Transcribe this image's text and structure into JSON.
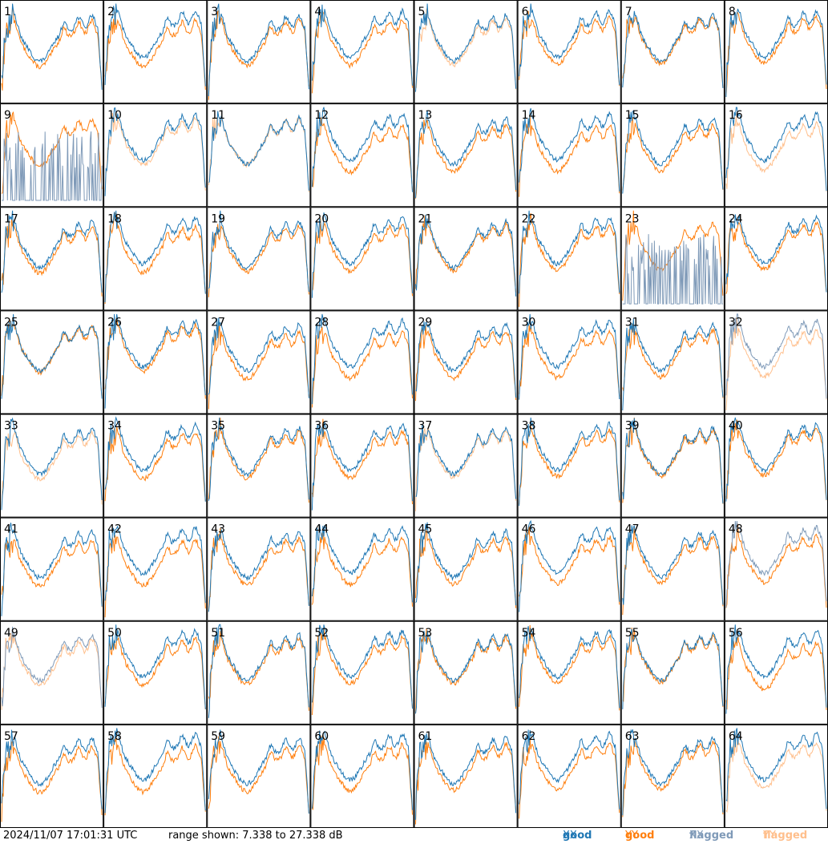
{
  "timestamp": "2024/11/07 17:01:31 UTC",
  "range_text": "range shown: 7.338 to 27.338 dB",
  "legend": [
    {
      "label": "good",
      "pol": "XX",
      "color": "#1f77b4"
    },
    {
      "label": "good",
      "pol": "YY",
      "color": "#ff7f0e"
    },
    {
      "label": "flagged",
      "pol": "XX",
      "color": "#7f9ab8"
    },
    {
      "label": "flagged",
      "pol": "YY",
      "color": "#ffbf8c"
    }
  ],
  "chart_data": {
    "type": "line",
    "grid": {
      "rows": 8,
      "cols": 8
    },
    "ylim": [
      7.338,
      27.338
    ],
    "ylabel": "dB",
    "panels": [
      {
        "label": "1",
        "xx": "good",
        "yy": "good"
      },
      {
        "label": "2",
        "xx": "good",
        "yy": "good"
      },
      {
        "label": "3",
        "xx": "good",
        "yy": "good"
      },
      {
        "label": "4",
        "xx": "good",
        "yy": "good"
      },
      {
        "label": "5",
        "xx": "good",
        "yy": "flagged"
      },
      {
        "label": "6",
        "xx": "good",
        "yy": "good"
      },
      {
        "label": "7",
        "xx": "good",
        "yy": "good"
      },
      {
        "label": "8",
        "xx": "good",
        "yy": "good"
      },
      {
        "label": "9",
        "xx": "flagged",
        "yy": "good"
      },
      {
        "label": "10",
        "xx": "good",
        "yy": "flagged"
      },
      {
        "label": "11",
        "xx": "good",
        "yy": "flagged"
      },
      {
        "label": "12",
        "xx": "good",
        "yy": "good"
      },
      {
        "label": "13",
        "xx": "good",
        "yy": "good"
      },
      {
        "label": "14",
        "xx": "good",
        "yy": "good"
      },
      {
        "label": "15",
        "xx": "good",
        "yy": "good"
      },
      {
        "label": "16",
        "xx": "good",
        "yy": "flagged"
      },
      {
        "label": "17",
        "xx": "good",
        "yy": "good"
      },
      {
        "label": "18",
        "xx": "good",
        "yy": "good"
      },
      {
        "label": "19",
        "xx": "good",
        "yy": "good"
      },
      {
        "label": "20",
        "xx": "good",
        "yy": "good"
      },
      {
        "label": "21",
        "xx": "good",
        "yy": "good"
      },
      {
        "label": "22",
        "xx": "good",
        "yy": "good"
      },
      {
        "label": "23",
        "xx": "flagged",
        "yy": "good"
      },
      {
        "label": "24",
        "xx": "good",
        "yy": "good"
      },
      {
        "label": "25",
        "xx": "good",
        "yy": "good"
      },
      {
        "label": "26",
        "xx": "good",
        "yy": "good"
      },
      {
        "label": "27",
        "xx": "good",
        "yy": "good"
      },
      {
        "label": "28",
        "xx": "good",
        "yy": "good"
      },
      {
        "label": "29",
        "xx": "good",
        "yy": "good"
      },
      {
        "label": "30",
        "xx": "good",
        "yy": "good"
      },
      {
        "label": "31",
        "xx": "good",
        "yy": "good"
      },
      {
        "label": "32",
        "xx": "flagged",
        "yy": "flagged"
      },
      {
        "label": "33",
        "xx": "good",
        "yy": "flagged"
      },
      {
        "label": "34",
        "xx": "good",
        "yy": "good"
      },
      {
        "label": "35",
        "xx": "good",
        "yy": "good"
      },
      {
        "label": "36",
        "xx": "good",
        "yy": "good"
      },
      {
        "label": "37",
        "xx": "good",
        "yy": "flagged"
      },
      {
        "label": "38",
        "xx": "good",
        "yy": "good"
      },
      {
        "label": "39",
        "xx": "good",
        "yy": "good"
      },
      {
        "label": "40",
        "xx": "good",
        "yy": "good"
      },
      {
        "label": "41",
        "xx": "good",
        "yy": "good"
      },
      {
        "label": "42",
        "xx": "good",
        "yy": "good"
      },
      {
        "label": "43",
        "xx": "good",
        "yy": "good"
      },
      {
        "label": "44",
        "xx": "good",
        "yy": "good"
      },
      {
        "label": "45",
        "xx": "good",
        "yy": "good"
      },
      {
        "label": "46",
        "xx": "good",
        "yy": "good"
      },
      {
        "label": "47",
        "xx": "good",
        "yy": "good"
      },
      {
        "label": "48",
        "xx": "flagged",
        "yy": "good"
      },
      {
        "label": "49",
        "xx": "flagged",
        "yy": "flagged"
      },
      {
        "label": "50",
        "xx": "good",
        "yy": "good"
      },
      {
        "label": "51",
        "xx": "good",
        "yy": "good"
      },
      {
        "label": "52",
        "xx": "good",
        "yy": "good"
      },
      {
        "label": "53",
        "xx": "good",
        "yy": "good"
      },
      {
        "label": "54",
        "xx": "good",
        "yy": "good"
      },
      {
        "label": "55",
        "xx": "good",
        "yy": "good"
      },
      {
        "label": "56",
        "xx": "good",
        "yy": "good"
      },
      {
        "label": "57",
        "xx": "good",
        "yy": "good"
      },
      {
        "label": "58",
        "xx": "good",
        "yy": "good"
      },
      {
        "label": "59",
        "xx": "good",
        "yy": "good"
      },
      {
        "label": "60",
        "xx": "good",
        "yy": "good"
      },
      {
        "label": "61",
        "xx": "good",
        "yy": "good"
      },
      {
        "label": "62",
        "xx": "good",
        "yy": "good"
      },
      {
        "label": "63",
        "xx": "good",
        "yy": "good"
      },
      {
        "label": "64",
        "xx": "good",
        "yy": "flagged"
      }
    ]
  }
}
